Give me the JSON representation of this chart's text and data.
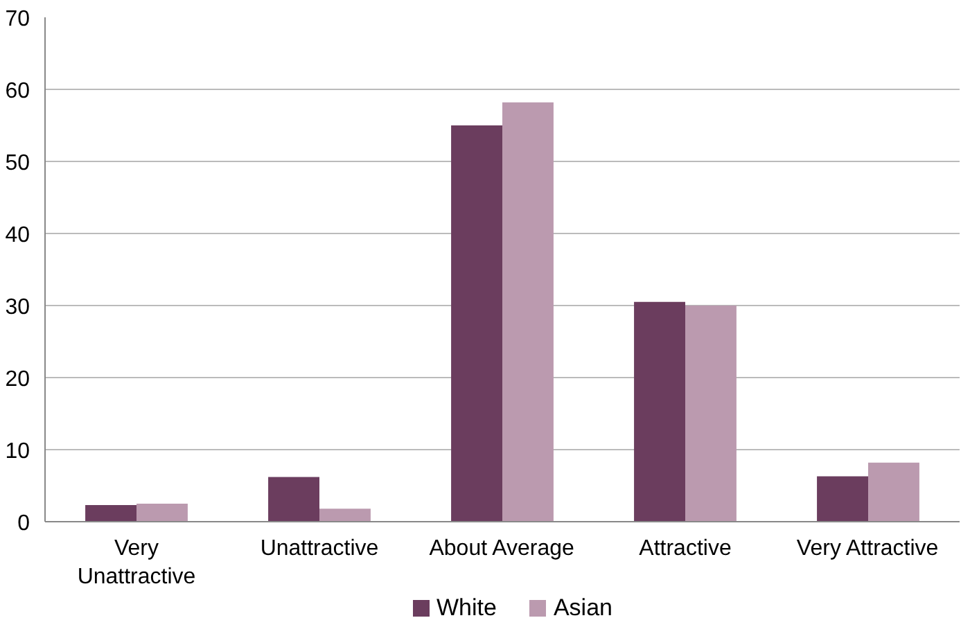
{
  "chart_data": {
    "type": "bar",
    "categories": [
      "Very\nUnattractive",
      "Unattractive",
      "About Average",
      "Attractive",
      "Very Attractive"
    ],
    "series": [
      {
        "name": "White",
        "color": "#6b3d5e",
        "values": [
          2.3,
          6.2,
          55,
          30.5,
          6.3
        ]
      },
      {
        "name": "Asian",
        "color": "#bb9aaf",
        "values": [
          2.5,
          1.8,
          58.2,
          30,
          8.2
        ]
      }
    ],
    "ylim": [
      0,
      70
    ],
    "yticks": [
      0,
      10,
      20,
      30,
      40,
      50,
      60,
      70
    ],
    "grid": "y",
    "legend": "bottom"
  }
}
